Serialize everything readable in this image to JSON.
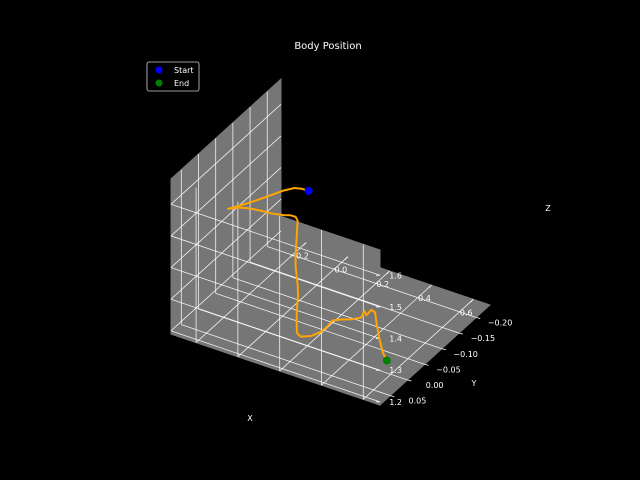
{
  "chart_data": {
    "type": "line",
    "projection": "3d",
    "title": "Body Position",
    "xlabel": "X",
    "ylabel": "Y",
    "zlabel": "Z",
    "xlim": [
      -0.32,
      0.68
    ],
    "ylim": [
      -0.24,
      0.08
    ],
    "zlim": [
      1.19,
      1.68
    ],
    "grid": true,
    "legend_position": "top-left",
    "x_ticks": [
      "−0.2",
      "0.0",
      "0.2",
      "0.4",
      "0.6"
    ],
    "y_ticks": [
      "−0.20",
      "−0.15",
      "−0.10",
      "−0.05",
      "0.00",
      "0.05"
    ],
    "z_ticks": [
      "1.2",
      "1.3",
      "1.4",
      "1.5",
      "1.6"
    ],
    "x_tick_values": [
      -0.2,
      0.0,
      0.2,
      0.4,
      0.6
    ],
    "y_tick_values": [
      -0.2,
      -0.15,
      -0.1,
      -0.05,
      0.0,
      0.05
    ],
    "z_tick_values": [
      1.2,
      1.3,
      1.4,
      1.5,
      1.6
    ],
    "colors": {
      "background": "#000000",
      "pane": "#767676",
      "grid": "#ffffff",
      "text": "#ffffff",
      "trajectory": "#ffa500",
      "start": "#0000ff",
      "end": "#008000"
    },
    "legend": [
      {
        "label": "Start",
        "color": "#0000ff"
      },
      {
        "label": "End",
        "color": "#008000"
      }
    ],
    "trajectory": [
      [
        0.108,
        -0.06,
        1.6
      ],
      [
        0.1,
        -0.045,
        1.62
      ],
      [
        0.09,
        -0.03,
        1.635
      ],
      [
        0.065,
        -0.01,
        1.64
      ],
      [
        0.03,
        0.015,
        1.638
      ],
      [
        -0.01,
        0.04,
        1.635
      ],
      [
        -0.05,
        0.06,
        1.632
      ],
      [
        -0.07,
        0.062,
        1.625
      ],
      [
        -0.08,
        0.06,
        1.62
      ],
      [
        -0.075,
        0.062,
        1.623
      ],
      [
        -0.06,
        0.06,
        1.626
      ],
      [
        -0.04,
        0.055,
        1.628
      ],
      [
        -0.01,
        0.048,
        1.626
      ],
      [
        0.02,
        0.04,
        1.62
      ],
      [
        0.045,
        0.032,
        1.612
      ],
      [
        0.065,
        0.025,
        1.604
      ],
      [
        0.085,
        0.018,
        1.598
      ],
      [
        0.105,
        0.01,
        1.592
      ],
      [
        0.12,
        0.0,
        1.585
      ],
      [
        0.128,
        -0.01,
        1.572
      ],
      [
        0.13,
        -0.015,
        1.555
      ],
      [
        0.127,
        -0.015,
        1.53
      ],
      [
        0.125,
        -0.015,
        1.5
      ],
      [
        0.122,
        -0.015,
        1.47
      ],
      [
        0.12,
        -0.015,
        1.44
      ],
      [
        0.12,
        -0.015,
        1.41
      ],
      [
        0.125,
        -0.015,
        1.38
      ],
      [
        0.13,
        -0.015,
        1.35
      ],
      [
        0.132,
        -0.015,
        1.32
      ],
      [
        0.128,
        -0.015,
        1.29
      ],
      [
        0.125,
        -0.015,
        1.26
      ],
      [
        0.125,
        -0.015,
        1.23
      ],
      [
        0.126,
        -0.015,
        1.2
      ],
      [
        0.135,
        -0.02,
        1.185
      ],
      [
        0.17,
        -0.03,
        1.185
      ],
      [
        0.2,
        -0.04,
        1.195
      ],
      [
        0.22,
        -0.045,
        1.21
      ],
      [
        0.24,
        -0.05,
        1.23
      ],
      [
        0.27,
        -0.055,
        1.235
      ],
      [
        0.31,
        -0.065,
        1.235
      ],
      [
        0.34,
        -0.072,
        1.24
      ],
      [
        0.35,
        -0.075,
        1.26
      ],
      [
        0.355,
        -0.078,
        1.245
      ],
      [
        0.37,
        -0.083,
        1.26
      ],
      [
        0.38,
        -0.088,
        1.25
      ],
      [
        0.385,
        -0.09,
        1.21
      ],
      [
        0.39,
        -0.095,
        1.16
      ],
      [
        0.395,
        -0.102,
        1.11
      ],
      [
        0.4,
        -0.11,
        1.08
      ]
    ],
    "start_point": [
      0.108,
      -0.06,
      1.6
    ],
    "end_point": [
      0.4,
      -0.11,
      1.08
    ]
  }
}
